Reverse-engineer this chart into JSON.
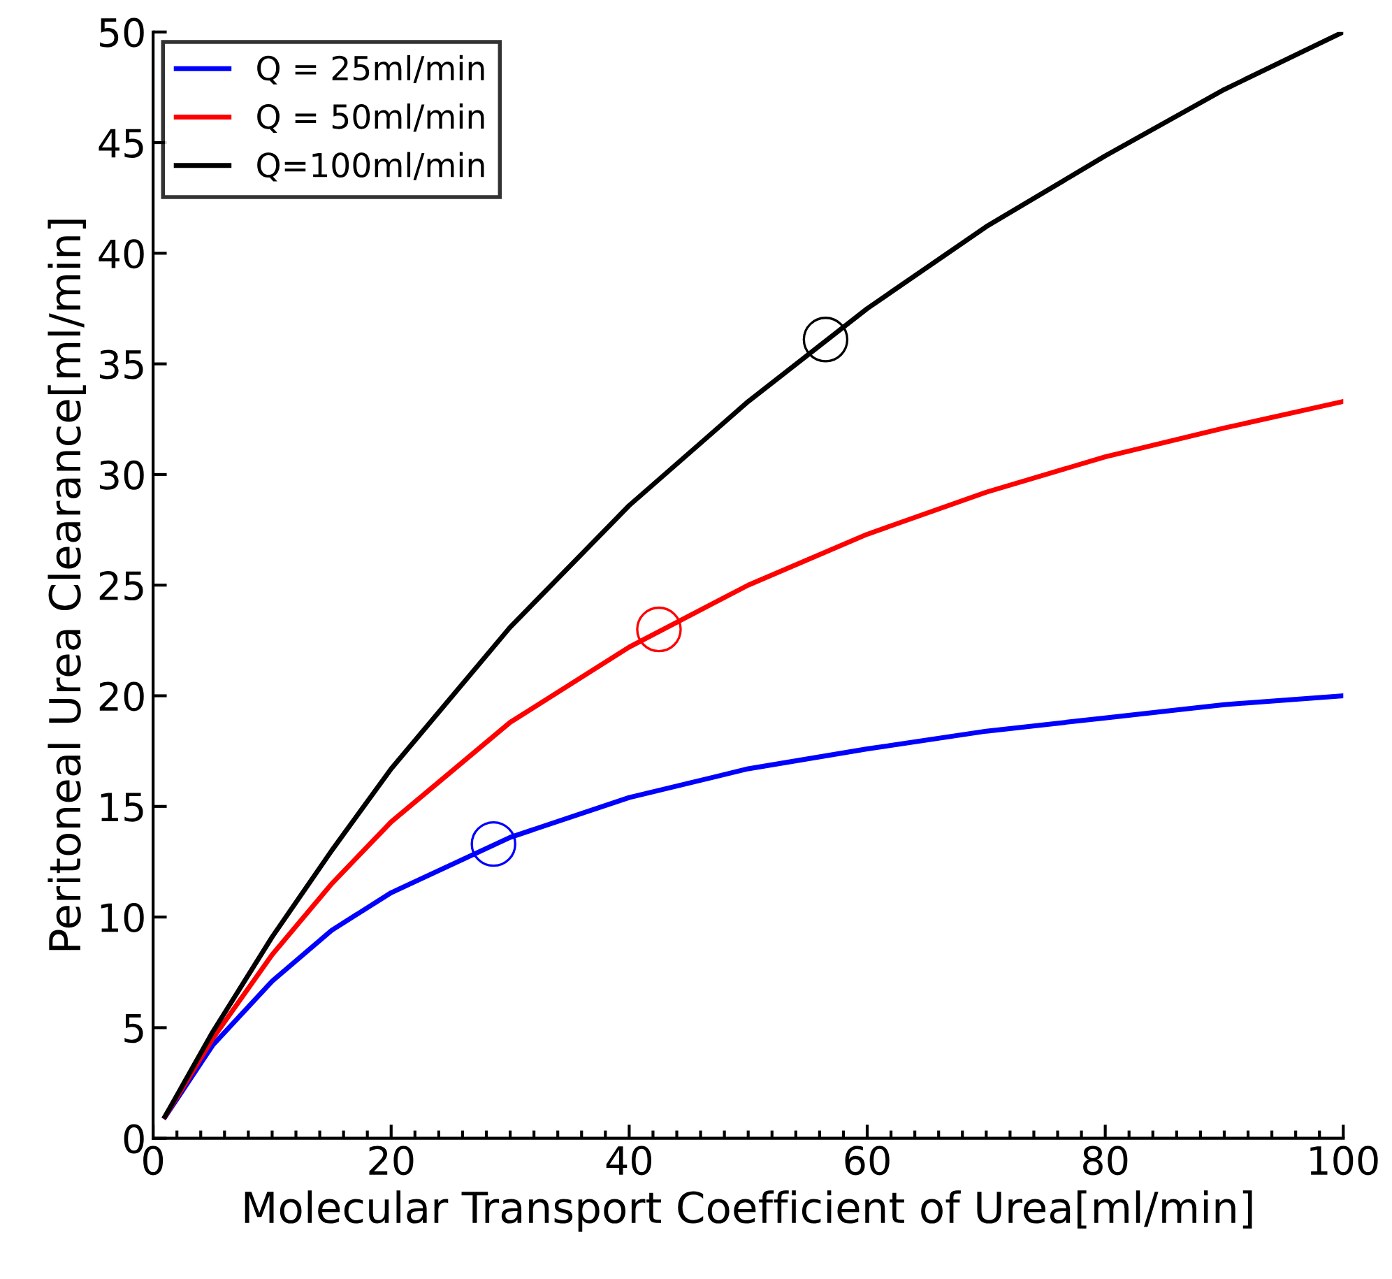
{
  "chart_data": {
    "type": "line",
    "xlabel": "Molecular Transport Coefficient of Urea[ml/min]",
    "ylabel": "Peritoneal Urea Clearance[ml/min]",
    "x": [
      1,
      5,
      10,
      15,
      20,
      30,
      40,
      50,
      60,
      70,
      80,
      90,
      100
    ],
    "series": [
      {
        "name": "Q = 25ml/min",
        "color": "#0000ff",
        "marker": "none",
        "values": [
          0.96,
          4.2,
          7.1,
          9.4,
          11.1,
          13.6,
          15.4,
          16.7,
          17.6,
          18.4,
          19.0,
          19.6,
          20.0
        ]
      },
      {
        "name": "Q = 50ml/min",
        "color": "#ff0000",
        "marker": "none",
        "values": [
          0.98,
          4.5,
          8.3,
          11.5,
          14.3,
          18.8,
          22.2,
          25.0,
          27.3,
          29.2,
          30.8,
          32.1,
          33.3
        ]
      },
      {
        "name": "Q=100ml/min",
        "color": "#000000",
        "marker": "none",
        "values": [
          0.99,
          4.8,
          9.1,
          13.0,
          16.7,
          23.1,
          28.6,
          33.3,
          37.5,
          41.2,
          44.4,
          47.4,
          50.0
        ]
      },
      {
        "type": "scatter",
        "marker": "circle",
        "x": [
          28.6
        ],
        "color": "#0000ff",
        "values": [
          13.3
        ]
      },
      {
        "type": "scatter",
        "marker": "circle",
        "x": [
          42.5
        ],
        "color": "#ff0000",
        "values": [
          23.0
        ]
      },
      {
        "type": "scatter",
        "marker": "circle",
        "x": [
          56.5
        ],
        "color": "#000000",
        "values": [
          36.1
        ]
      }
    ],
    "xlim": [
      0,
      100
    ],
    "xticks": [
      0,
      20,
      40,
      60,
      80,
      100
    ],
    "ylim": [
      0,
      50
    ],
    "yticks": [
      0,
      5,
      10,
      15,
      20,
      25,
      30,
      35,
      40,
      45,
      50
    ],
    "grid": false,
    "legend": "top left",
    "line_style": "solid"
  }
}
